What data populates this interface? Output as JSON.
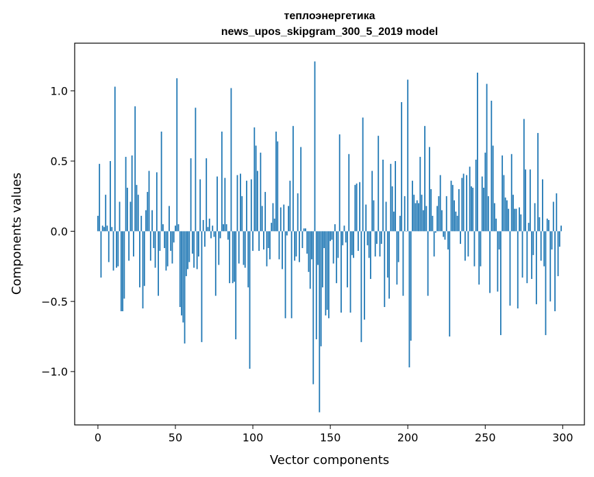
{
  "chart_data": {
    "type": "bar",
    "title": "теплоэнергетика",
    "subtitle": "news_upos_skipgram_300_5_2019 model",
    "xlabel": "Vector components",
    "ylabel": "Components values",
    "xlim": [
      -15,
      314
    ],
    "ylim": [
      -1.38,
      1.34
    ],
    "x_ticks": [
      0,
      50,
      100,
      150,
      200,
      250,
      300
    ],
    "x_tick_labels": [
      "0",
      "50",
      "100",
      "150",
      "200",
      "250",
      "300"
    ],
    "y_ticks": [
      -1.0,
      -0.5,
      0.0,
      0.5,
      1.0
    ],
    "y_tick_labels": [
      "−1.0",
      "−0.5",
      "0.0",
      "0.5",
      "1.0"
    ],
    "grid": false,
    "bar_color": "#1f77b4",
    "values": [
      0.11,
      0.48,
      -0.33,
      0.04,
      0.03,
      0.26,
      0.04,
      -0.22,
      0.5,
      0.03,
      -0.28,
      1.03,
      -0.26,
      -0.25,
      0.21,
      -0.57,
      -0.57,
      -0.48,
      0.53,
      0.31,
      -0.21,
      0.21,
      0.54,
      -0.18,
      0.89,
      0.33,
      0.26,
      -0.4,
      0.11,
      -0.55,
      -0.39,
      0.15,
      0.28,
      0.43,
      -0.21,
      0.15,
      -0.12,
      -0.26,
      0.42,
      -0.46,
      -0.14,
      0.71,
      0.05,
      -0.12,
      -0.28,
      -0.25,
      0.18,
      -0.14,
      -0.23,
      -0.08,
      0.04,
      1.09,
      0.05,
      -0.54,
      -0.6,
      -0.65,
      -0.8,
      -0.32,
      -0.27,
      -0.22,
      0.52,
      -0.16,
      -0.26,
      0.88,
      -0.27,
      -0.18,
      0.37,
      -0.79,
      0.08,
      -0.11,
      0.52,
      0.03,
      0.09,
      -0.05,
      0.04,
      -0.04,
      -0.46,
      0.39,
      -0.24,
      -0.05,
      0.71,
      0.05,
      0.38,
      0.05,
      -0.06,
      -0.37,
      1.02,
      -0.37,
      -0.36,
      -0.77,
      0.4,
      -0.23,
      0.41,
      0.25,
      -0.24,
      -0.26,
      0.36,
      -0.4,
      -0.98,
      0.37,
      -0.14,
      0.74,
      0.61,
      0.43,
      -0.14,
      0.56,
      0.18,
      -0.13,
      0.28,
      -0.25,
      -0.12,
      -0.2,
      0.06,
      0.2,
      0.09,
      0.71,
      0.64,
      -0.2,
      0.17,
      -0.27,
      0.19,
      -0.62,
      -0.03,
      0.18,
      0.36,
      -0.62,
      0.75,
      -0.21,
      -0.18,
      0.27,
      -0.22,
      0.6,
      -0.12,
      0.02,
      0.02,
      -0.16,
      -0.29,
      -0.41,
      -0.2,
      -1.09,
      1.21,
      -0.77,
      -0.24,
      -1.29,
      -0.82,
      -0.4,
      -0.12,
      -0.6,
      -0.56,
      -0.62,
      -0.07,
      -0.06,
      -0.23,
      0.05,
      -0.37,
      -0.19,
      0.69,
      -0.58,
      -0.1,
      0.04,
      -0.08,
      -0.4,
      0.55,
      -0.58,
      -0.17,
      -0.19,
      0.33,
      0.34,
      -0.14,
      0.35,
      -0.79,
      0.81,
      -0.63,
      0.19,
      -0.1,
      -0.19,
      -0.34,
      0.43,
      0.22,
      -0.18,
      -0.09,
      0.68,
      -0.18,
      -0.09,
      0.51,
      -0.54,
      0.21,
      -0.33,
      -0.48,
      0.48,
      0.32,
      0.14,
      0.5,
      -0.38,
      -0.22,
      0.11,
      0.92,
      -0.46,
      0.25,
      0.0,
      1.08,
      -0.97,
      -0.78,
      0.36,
      0.26,
      0.2,
      0.22,
      0.2,
      0.53,
      0.26,
      0.15,
      0.75,
      0.18,
      -0.46,
      0.6,
      0.3,
      0.11,
      -0.18,
      -0.01,
      0.18,
      0.25,
      0.4,
      0.15,
      -0.04,
      -0.06,
      0.25,
      -0.13,
      -0.75,
      0.36,
      0.33,
      0.22,
      0.14,
      0.11,
      0.3,
      -0.09,
      0.38,
      0.41,
      -0.21,
      0.4,
      -0.18,
      0.46,
      0.32,
      0.31,
      -0.25,
      0.51,
      1.13,
      -0.38,
      -0.25,
      0.39,
      0.31,
      0.56,
      1.05,
      0.25,
      -0.44,
      0.93,
      0.61,
      0.2,
      0.09,
      -0.43,
      -0.13,
      -0.74,
      0.54,
      0.4,
      0.24,
      0.22,
      0.16,
      -0.53,
      0.55,
      0.26,
      0.16,
      0.16,
      -0.55,
      0.17,
      0.12,
      -0.33,
      0.8,
      0.44,
      -0.37,
      0.06,
      0.44,
      -0.34,
      -0.17,
      0.2,
      -0.52,
      0.7,
      0.1,
      -0.21,
      0.37,
      -0.25,
      -0.74,
      0.09,
      0.08,
      -0.5,
      -0.13,
      0.21,
      -0.57,
      0.27,
      -0.32,
      -0.11,
      0.04
    ]
  }
}
